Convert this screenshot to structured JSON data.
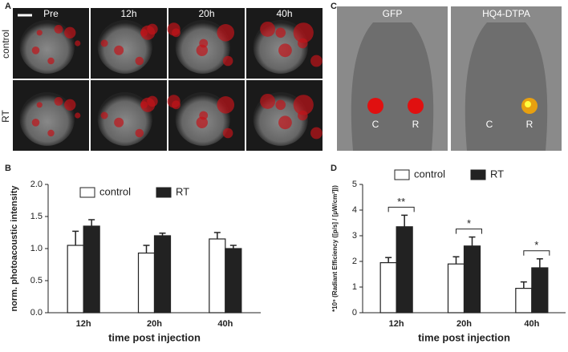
{
  "panels": {
    "a": {
      "letter": "A",
      "columns": [
        "Pre",
        "12h",
        "20h",
        "40h"
      ],
      "rows": [
        "control",
        "RT"
      ]
    },
    "b": {
      "letter": "B"
    },
    "c": {
      "letter": "C",
      "columns": [
        "GFP",
        "HQ4-DTPA"
      ],
      "marks": [
        "C",
        "R"
      ]
    },
    "d": {
      "letter": "D"
    }
  },
  "chart_data": [
    {
      "type": "bar",
      "ylabel": "norm. photoacoustic intensity",
      "xlabel": "time post injection",
      "categories": [
        "12h",
        "20h",
        "40h"
      ],
      "series": [
        {
          "name": "control",
          "color": "#ffffff",
          "values": [
            1.05,
            0.93,
            1.15
          ],
          "errors": [
            0.22,
            0.12,
            0.1
          ]
        },
        {
          "name": "RT",
          "color": "#222222",
          "values": [
            1.35,
            1.2,
            1.0
          ],
          "errors": [
            0.1,
            0.04,
            0.05
          ]
        }
      ],
      "ylim": [
        0,
        2
      ],
      "yticks": [
        {
          "value": 0,
          "label": "0.0"
        },
        {
          "value": 0.5,
          "label": "0.5"
        },
        {
          "value": 1,
          "label": "1.0"
        },
        {
          "value": 1.5,
          "label": "1.5"
        },
        {
          "value": 2,
          "label": "2.0"
        }
      ]
    },
    {
      "type": "bar",
      "ylabel": "*10⁹ (Radiant Efficiency ([p/s] / [µW/cm²]))",
      "xlabel": "time post injection",
      "categories": [
        "12h",
        "20h",
        "40h"
      ],
      "series": [
        {
          "name": "control",
          "color": "#ffffff",
          "values": [
            1.95,
            1.9,
            0.95
          ],
          "errors": [
            0.2,
            0.28,
            0.25
          ]
        },
        {
          "name": "RT",
          "color": "#222222",
          "values": [
            3.35,
            2.6,
            1.75
          ],
          "errors": [
            0.45,
            0.35,
            0.35
          ]
        }
      ],
      "annotations": [
        "**",
        "*",
        "*"
      ],
      "ylim": [
        0,
        5
      ],
      "yticks": [
        0,
        1,
        2,
        3,
        4,
        5
      ]
    }
  ]
}
